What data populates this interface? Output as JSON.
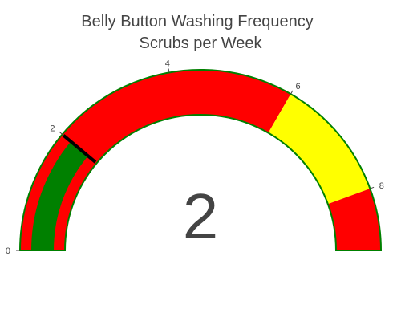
{
  "chart_data": {
    "type": "gauge",
    "title_lines": [
      "Belly Button Washing Frequency",
      "Scrubs per Week"
    ],
    "value": 2,
    "value_display": "2",
    "range": [
      0,
      9
    ],
    "ticks": [
      0,
      2,
      4,
      6,
      8
    ],
    "steps": [
      {
        "range": [
          0,
          6
        ],
        "color": "#ff0000"
      },
      {
        "range": [
          6,
          8
        ],
        "color": "#ffff00"
      },
      {
        "range": [
          8,
          9
        ],
        "color": "#ff0000"
      }
    ],
    "bar_color": "#008000",
    "border_color": "#008000",
    "threshold": {
      "value": 2,
      "color": "#000000"
    }
  }
}
